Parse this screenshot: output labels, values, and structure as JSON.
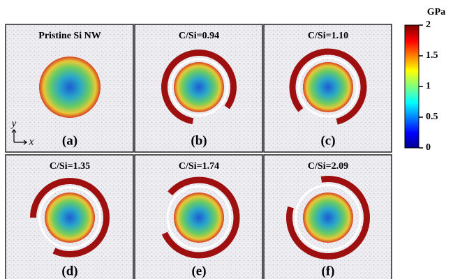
{
  "panels": [
    {
      "title": "Pristine Si NW",
      "label": "(a)"
    },
    {
      "title": "C/Si=0.94",
      "label": "(b)"
    },
    {
      "title": "C/Si=1.10",
      "label": "(c)"
    },
    {
      "title": "C/Si=1.35",
      "label": "(d)"
    },
    {
      "title": "C/Si=1.74",
      "label": "(e)"
    },
    {
      "title": "C/Si=2.09",
      "label": "(f)"
    }
  ],
  "axes": {
    "y": "y",
    "x": "x"
  },
  "colorbar": {
    "unit": "GPa",
    "lim": [
      0,
      2
    ],
    "ticks": [
      0,
      0.5,
      1,
      1.5,
      2
    ]
  }
}
